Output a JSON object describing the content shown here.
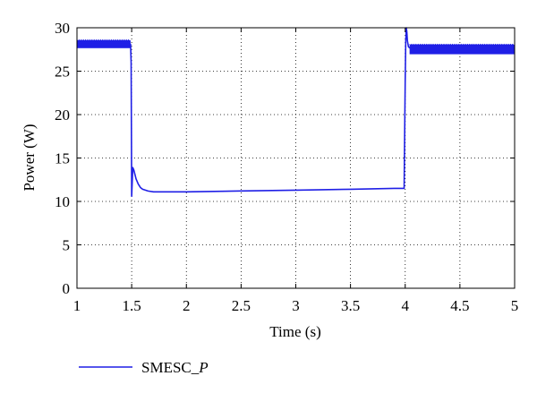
{
  "chart_data": {
    "type": "line",
    "title": "",
    "xlabel": "Time (s)",
    "ylabel": "Power (W)",
    "xlim": [
      1,
      5
    ],
    "ylim": [
      0,
      30
    ],
    "x_ticks": [
      1,
      1.5,
      2,
      2.5,
      3,
      3.5,
      4,
      4.5,
      5
    ],
    "x_tick_labels": [
      "1",
      "1.5",
      "2",
      "2.5",
      "3",
      "3.5",
      "4",
      "4.5",
      "5"
    ],
    "y_ticks": [
      0,
      5,
      10,
      15,
      20,
      25,
      30
    ],
    "y_tick_labels": [
      "0",
      "5",
      "10",
      "15",
      "20",
      "25",
      "30"
    ],
    "grid": true,
    "grid_style": "dotted",
    "legend_position": "bottom-left",
    "series": [
      {
        "name": "SMESC_P",
        "color": "#1f1fe6",
        "x": [
          1.0,
          1.49,
          1.495,
          1.5,
          1.51,
          1.52,
          1.54,
          1.56,
          1.58,
          1.6,
          1.65,
          1.7,
          1.8,
          2.0,
          2.5,
          3.0,
          3.5,
          3.9,
          3.99,
          4.0,
          4.005,
          4.01,
          4.015,
          4.02,
          4.03,
          4.05,
          4.1,
          4.2,
          4.5,
          5.0
        ],
        "values": [
          28.1,
          28.1,
          26.0,
          10.6,
          13.9,
          13.6,
          12.6,
          12.0,
          11.6,
          11.4,
          11.2,
          11.1,
          11.1,
          11.1,
          11.2,
          11.3,
          11.4,
          11.5,
          11.5,
          24.0,
          28.5,
          30.0,
          29.5,
          28.5,
          27.8,
          27.6,
          27.5,
          27.5,
          27.5,
          27.5
        ],
        "noise_band": [
          {
            "x_start": 1.0,
            "x_end": 1.49,
            "center": 28.1,
            "half_width": 0.45
          },
          {
            "x_start": 4.04,
            "x_end": 5.0,
            "center": 27.5,
            "half_width": 0.55
          }
        ]
      }
    ],
    "legend": [
      {
        "label_main": "SMESC",
        "label_sep": "_",
        "label_italic": "P",
        "color": "#1f1fe6"
      }
    ]
  }
}
